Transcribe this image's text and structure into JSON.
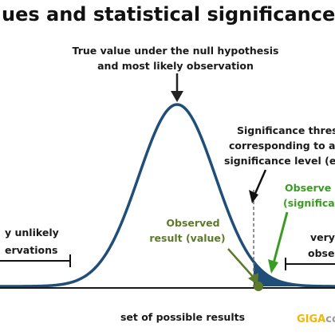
{
  "title": "ues and statistical significance exp",
  "annotations": {
    "null_line1": "True value under the null hypothesis",
    "null_line2": "and most likely observation",
    "threshold_line1": "Significance thresh",
    "threshold_line2": "corresponding to a g",
    "threshold_line3": "significance level (e.g",
    "observed_sig_line1": "Observe",
    "observed_sig_line2": "(significan",
    "observed_line1": "Observed",
    "observed_line2": "result (value)",
    "unlikely_left_line1": "y unlikely",
    "unlikely_left_line2": "ervations",
    "unlikely_right_line1": "very",
    "unlikely_right_line2": "obse",
    "xaxis_label": "set of possible results"
  },
  "brand": {
    "part1": "GIGA",
    "part2": "co"
  },
  "colors": {
    "curve": "#1f4e79",
    "tail_fill": "#1f4e79",
    "observed_point": "#5d7a2a",
    "green_text": "#3a9d23",
    "brand_yellow": "#f2b705"
  },
  "curve": {
    "type": "normal-distribution",
    "shaded_region": "right-tail"
  }
}
